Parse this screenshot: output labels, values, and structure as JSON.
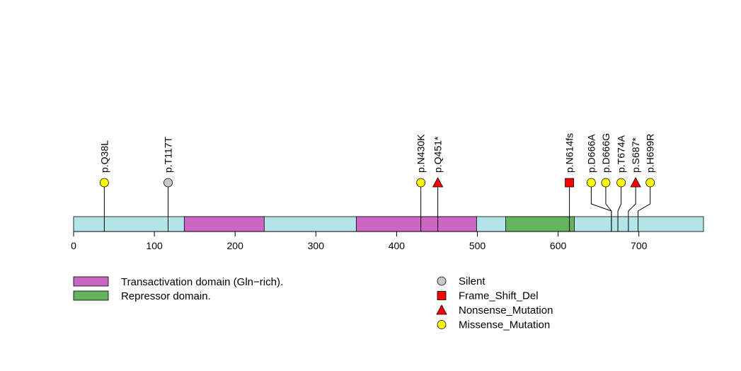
{
  "chart_data": {
    "type": "lollipop",
    "protein_length": 780,
    "axis": {
      "ticks": [
        0,
        100,
        200,
        300,
        400,
        500,
        600,
        700
      ],
      "tick_labels": [
        "0",
        "100",
        "200",
        "300",
        "400",
        "500",
        "600",
        "700"
      ]
    },
    "colors": {
      "backbone": "#b3e5e8",
      "Transactivation": "#cc66c4",
      "Repressor": "#63b35f",
      "Silent": "#c8c8c8",
      "Frame_Shift_Del": "#ff0000",
      "Nonsense_Mutation": "#ff0000",
      "Missense_Mutation": "#ffff00"
    },
    "domains": [
      {
        "type": "Transactivation",
        "start": 137,
        "end": 236
      },
      {
        "type": "Transactivation",
        "start": 350,
        "end": 499
      },
      {
        "type": "Repressor",
        "start": 535,
        "end": 620
      }
    ],
    "mutations": [
      {
        "label": "p.Q38L",
        "position": 38,
        "label_position": 38,
        "type": "Missense_Mutation"
      },
      {
        "label": "p.T117T",
        "position": 117,
        "label_position": 117,
        "type": "Silent"
      },
      {
        "label": "p.N430K",
        "position": 430,
        "label_position": 430,
        "type": "Missense_Mutation"
      },
      {
        "label": "p.Q451*",
        "position": 451,
        "label_position": 451,
        "type": "Nonsense_Mutation"
      },
      {
        "label": "p.N614fs",
        "position": 614,
        "label_position": 614,
        "type": "Frame_Shift_Del"
      },
      {
        "label": "p.D666A",
        "position": 666,
        "label_position": 641,
        "type": "Missense_Mutation"
      },
      {
        "label": "p.D666G",
        "position": 666,
        "label_position": 659,
        "type": "Missense_Mutation"
      },
      {
        "label": "p.T674A",
        "position": 674,
        "label_position": 678,
        "type": "Missense_Mutation"
      },
      {
        "label": "p.S687*",
        "position": 687,
        "label_position": 696,
        "type": "Nonsense_Mutation"
      },
      {
        "label": "p.H699R",
        "position": 699,
        "label_position": 714,
        "type": "Missense_Mutation"
      }
    ]
  },
  "legend": {
    "domains": [
      {
        "label": "Transactivation domain (Gln−rich).",
        "color_key": "Transactivation"
      },
      {
        "label": "Repressor domain.",
        "color_key": "Repressor"
      }
    ],
    "mutation_types": [
      {
        "label": "Silent",
        "shape": "circle",
        "color_key": "Silent"
      },
      {
        "label": "Frame_Shift_Del",
        "shape": "square",
        "color_key": "Frame_Shift_Del"
      },
      {
        "label": "Nonsense_Mutation",
        "shape": "triangle",
        "color_key": "Nonsense_Mutation"
      },
      {
        "label": "Missense_Mutation",
        "shape": "circle",
        "color_key": "Missense_Mutation"
      }
    ]
  }
}
